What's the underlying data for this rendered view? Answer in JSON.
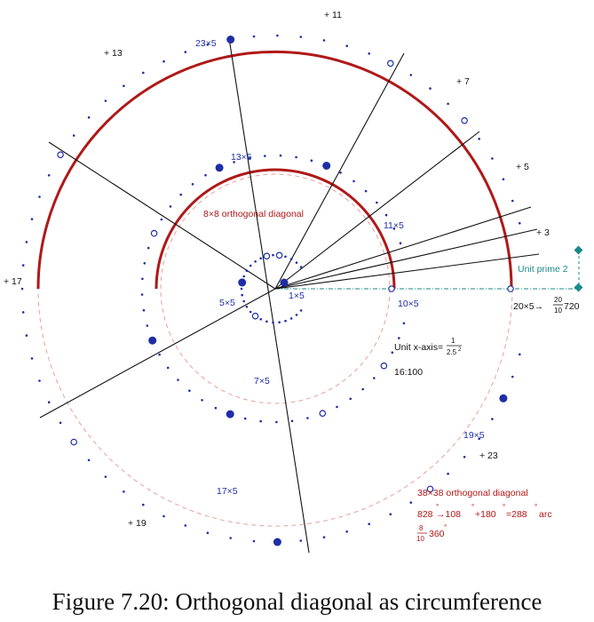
{
  "figure": {
    "caption": "Figure 7.20: Orthogonal diagonal as circumference",
    "primes": [
      "+ 11",
      "+ 13",
      "+ 7",
      "+ 5",
      "+ 3",
      "+ 17",
      "+ 19",
      "+ 23"
    ],
    "products": [
      "23×5",
      "13×5",
      "11×5",
      "1×5",
      "5×5",
      "7×5",
      "10×5",
      "19×5",
      "17×5",
      "20×5"
    ],
    "inner_label": "8×8 orthogonal diagonal",
    "outer_label": "38×38 orthogonal diagonal",
    "unit_prime": "Unit prime 2",
    "x_axis": {
      "prefix": "Unit x-axis=",
      "num": "1",
      "den": "2.5",
      "exp": "2"
    },
    "ratio": "16:100",
    "twenty": {
      "prefix": "20×5→",
      "num": "20",
      "den": "10",
      "value": "720"
    },
    "arc": {
      "p1": "828",
      "p2": "→108",
      "p3": "+180",
      "p4": "=288",
      "p5": "arc",
      "deg": "°",
      "frac_num": "8",
      "frac_den": "10",
      "frac_val": "360"
    },
    "colors": {
      "blue": "#1f2ea6",
      "red": "#b01818",
      "pink": "#e8a0a0",
      "teal": "#1a8a88"
    }
  }
}
